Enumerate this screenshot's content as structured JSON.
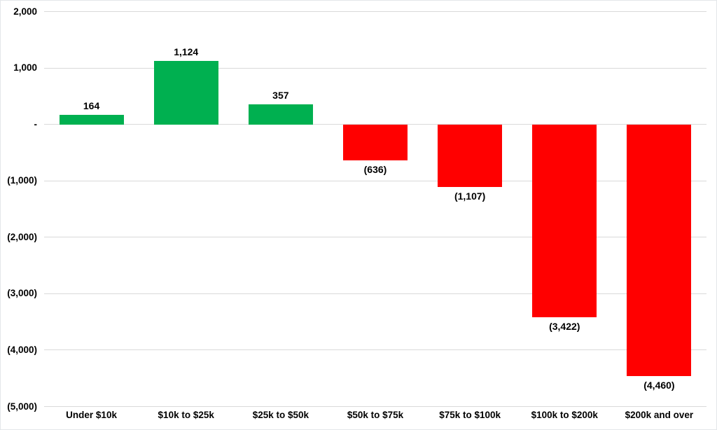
{
  "chart_data": {
    "type": "bar",
    "title": "",
    "xlabel": "",
    "ylabel": "",
    "categories": [
      "Under $10k",
      "$10k to $25k",
      "$25k to $50k",
      "$50k to $75k",
      "$75k to $100k",
      "$100k to $200k",
      "$200k and over"
    ],
    "values": [
      164,
      1124,
      357,
      -636,
      -1107,
      -3422,
      -4460
    ],
    "data_labels": [
      "164",
      "1,124",
      "357",
      "(636)",
      "(1,107)",
      "(3,422)",
      "(4,460)"
    ],
    "y_axis": {
      "min": -5000,
      "max": 2000,
      "step": 1000,
      "ticks": [
        {
          "value": 2000,
          "label": "2,000"
        },
        {
          "value": 1000,
          "label": "1,000"
        },
        {
          "value": 0,
          "label": "-"
        },
        {
          "value": -1000,
          "label": "(1,000)"
        },
        {
          "value": -2000,
          "label": "(2,000)"
        },
        {
          "value": -3000,
          "label": "(3,000)"
        },
        {
          "value": -4000,
          "label": "(4,000)"
        },
        {
          "value": -5000,
          "label": "(5,000)"
        }
      ]
    },
    "grid": true,
    "legend": false,
    "colors": {
      "positive": "#00B050",
      "negative": "#FF0000",
      "gridline": "#D9D9D9",
      "text": "#000000",
      "background": "#FFFFFF"
    }
  }
}
